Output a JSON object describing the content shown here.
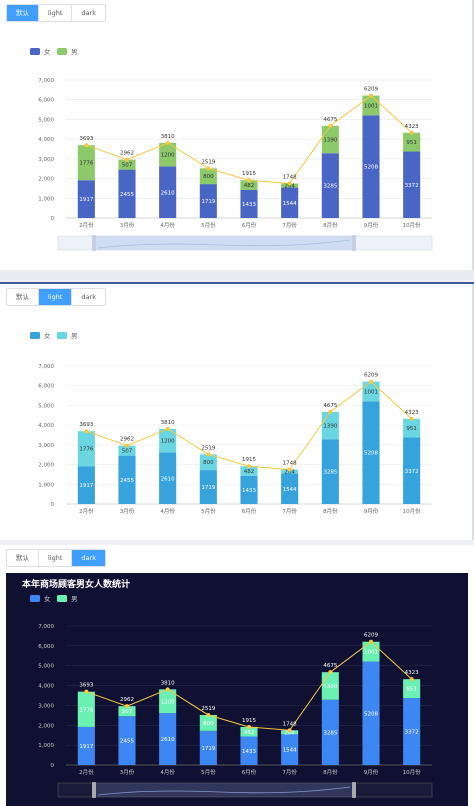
{
  "tabs": [
    "默认",
    "light",
    "dark"
  ],
  "panels": [
    {
      "theme": "default",
      "active_tab": 0,
      "title": "",
      "colors": {
        "female": "#4a66c4",
        "male": "#8bc96a",
        "line": "#f5c842",
        "text": "#666666",
        "label": "#ffffff",
        "grid": "#e8e8e8"
      }
    },
    {
      "theme": "light",
      "active_tab": 1,
      "title": "",
      "colors": {
        "female": "#36a3dd",
        "male": "#6ad6e1",
        "line": "#f5c842",
        "text": "#666666",
        "label": "#ffffff",
        "grid": "#eeeeee"
      }
    },
    {
      "theme": "dark",
      "active_tab": 2,
      "title": "本年商场顾客男女人数统计",
      "colors": {
        "female": "#3d87f5",
        "male": "#6bf0b3",
        "line": "#f5c842",
        "text": "#cccccc",
        "label": "#ffffff",
        "grid": "#2a2a4a"
      }
    }
  ],
  "chart_data": {
    "type": "bar",
    "stacked": true,
    "categories": [
      "2月份",
      "3月份",
      "4月份",
      "5月份",
      "6月份",
      "7月份",
      "8月份",
      "9月份",
      "10月份"
    ],
    "series": [
      {
        "name": "女",
        "values": [
          1917,
          2455,
          2610,
          1719,
          1433,
          1544,
          3285,
          5208,
          3372
        ]
      },
      {
        "name": "男",
        "values": [
          1776,
          507,
          1200,
          800,
          482,
          204,
          1390,
          1001,
          951
        ]
      }
    ],
    "totals": [
      3693,
      2962,
      3810,
      2519,
      1915,
      1748,
      4675,
      6209,
      4323
    ],
    "y_ticks": [
      "0",
      "1,000",
      "2,000",
      "3,000",
      "4,000",
      "5,000",
      "6,000",
      "7,000"
    ],
    "ylim": [
      0,
      7000
    ],
    "legend_position": "top-left",
    "has_zoom_slider": true
  }
}
